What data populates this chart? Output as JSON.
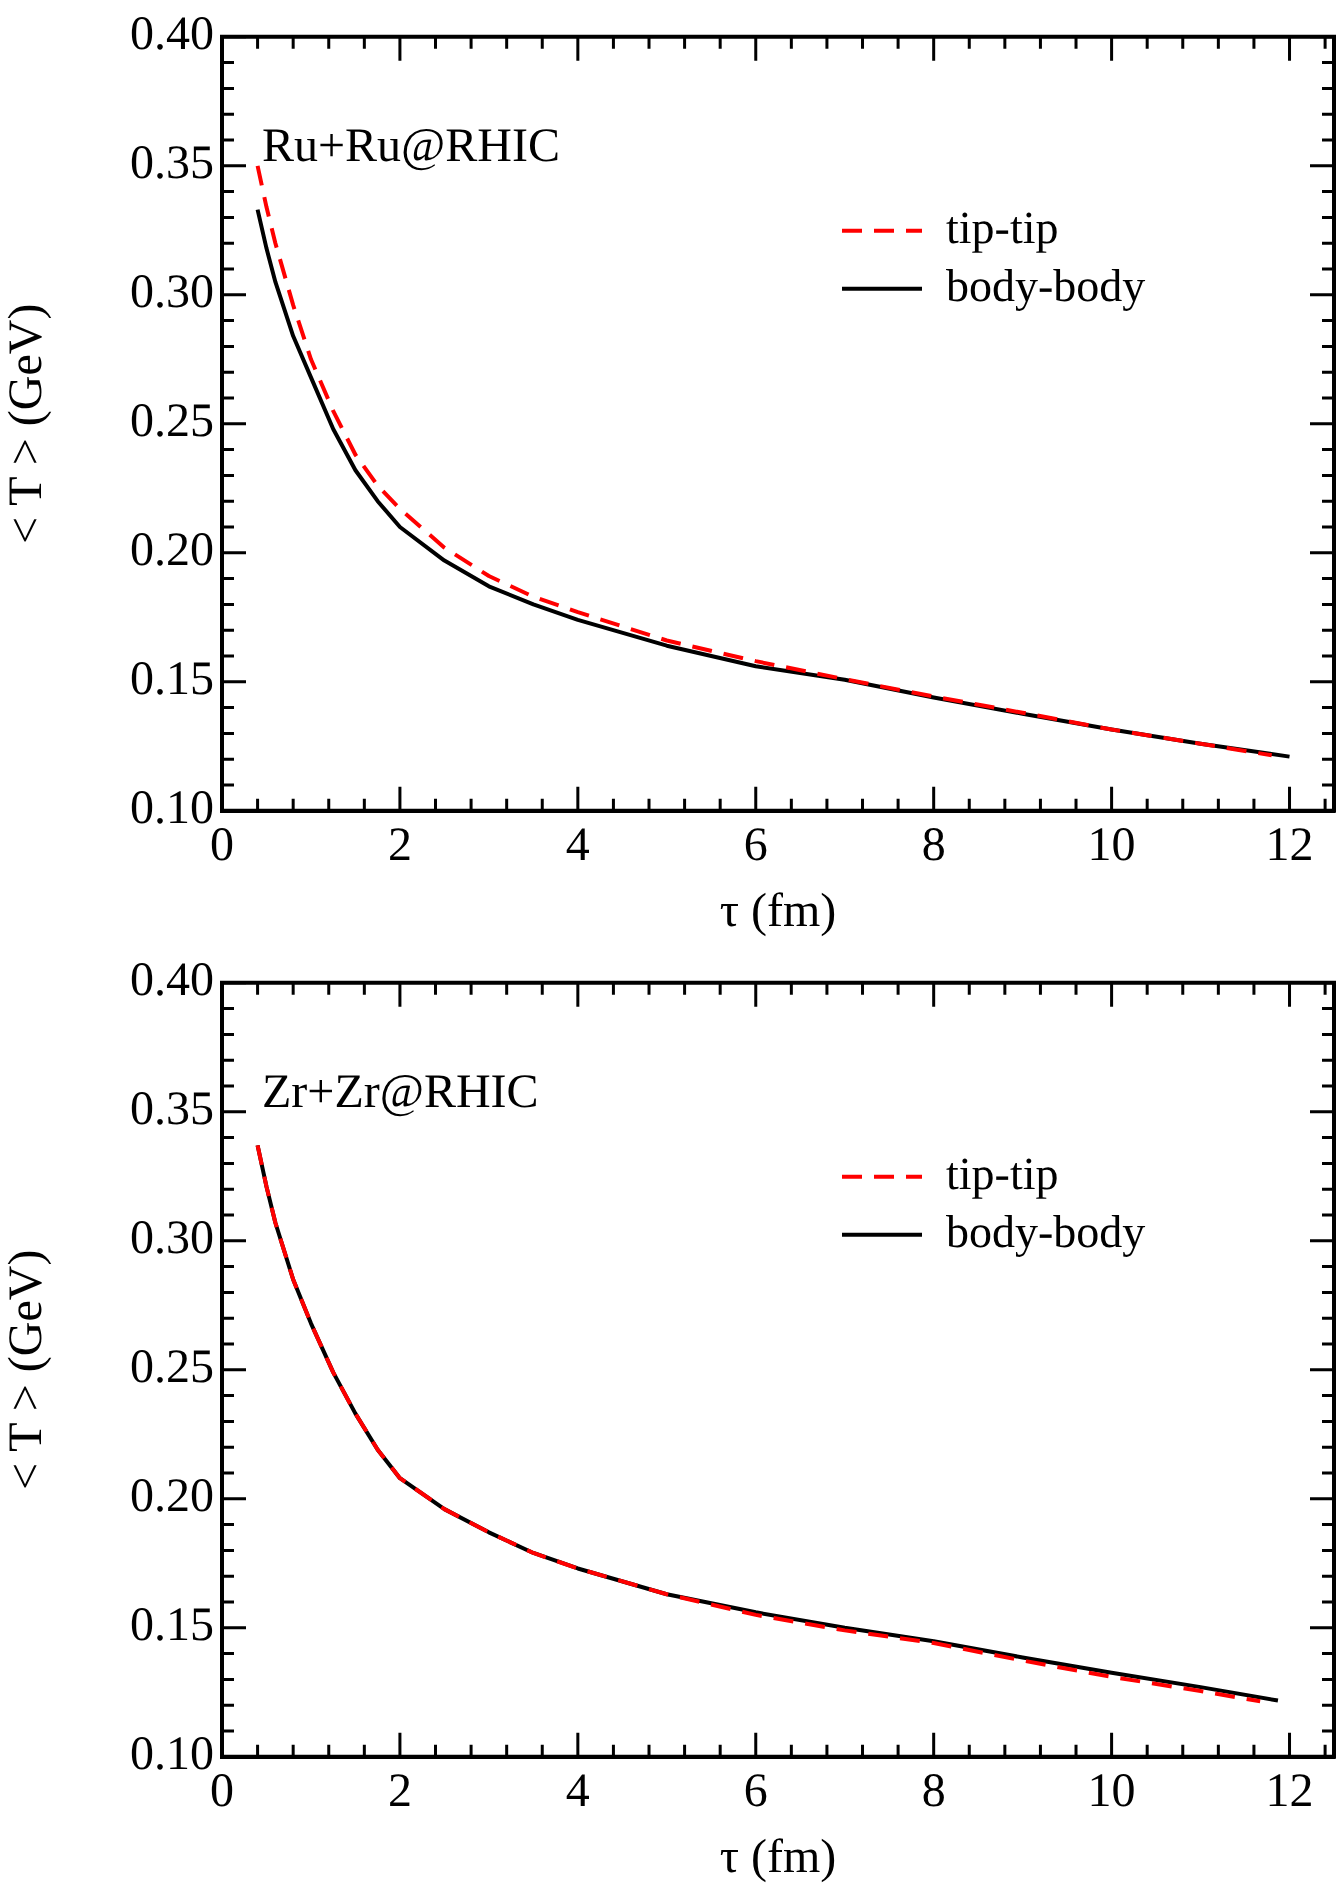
{
  "chart_data": [
    {
      "type": "line",
      "xlabel": "τ (fm)",
      "ylabel": "< T > (GeV)",
      "annotations": [
        "Ru+Ru@RHIC"
      ],
      "legend": "top right",
      "marker": "none",
      "grid": false,
      "xlim": [
        0,
        12.5
      ],
      "ylim": [
        0.1,
        0.4
      ],
      "xticks": [
        0,
        {
          "value": 0.4,
          "label": null
        },
        {
          "value": 0.8,
          "label": null
        },
        {
          "value": 1.2,
          "label": null
        },
        {
          "value": 1.6,
          "label": null
        },
        2,
        {
          "value": 2.4,
          "label": null
        },
        {
          "value": 2.8,
          "label": null
        },
        {
          "value": 3.2,
          "label": null
        },
        {
          "value": 3.6,
          "label": null
        },
        4,
        {
          "value": 4.4,
          "label": null
        },
        {
          "value": 4.8,
          "label": null
        },
        {
          "value": 5.2,
          "label": null
        },
        {
          "value": 5.6,
          "label": null
        },
        6,
        {
          "value": 6.4,
          "label": null
        },
        {
          "value": 6.8,
          "label": null
        },
        {
          "value": 7.2,
          "label": null
        },
        {
          "value": 7.6,
          "label": null
        },
        8,
        {
          "value": 8.4,
          "label": null
        },
        {
          "value": 8.8,
          "label": null
        },
        {
          "value": 9.2,
          "label": null
        },
        {
          "value": 9.6,
          "label": null
        },
        10,
        {
          "value": 10.4,
          "label": null
        },
        {
          "value": 10.8,
          "label": null
        },
        {
          "value": 11.2,
          "label": null
        },
        {
          "value": 11.6,
          "label": null
        },
        12,
        {
          "value": 12.4,
          "label": null
        }
      ],
      "yticks": [
        {
          "value": 0.1,
          "label": "0.10"
        },
        {
          "value": 0.11,
          "label": null
        },
        {
          "value": 0.12,
          "label": null
        },
        {
          "value": 0.13,
          "label": null
        },
        {
          "value": 0.14,
          "label": null
        },
        {
          "value": 0.15,
          "label": "0.15"
        },
        {
          "value": 0.16,
          "label": null
        },
        {
          "value": 0.17,
          "label": null
        },
        {
          "value": 0.18,
          "label": null
        },
        {
          "value": 0.19,
          "label": null
        },
        {
          "value": 0.2,
          "label": "0.20"
        },
        {
          "value": 0.21,
          "label": null
        },
        {
          "value": 0.22,
          "label": null
        },
        {
          "value": 0.23,
          "label": null
        },
        {
          "value": 0.24,
          "label": null
        },
        {
          "value": 0.25,
          "label": "0.25"
        },
        {
          "value": 0.26,
          "label": null
        },
        {
          "value": 0.27,
          "label": null
        },
        {
          "value": 0.28,
          "label": null
        },
        {
          "value": 0.29,
          "label": null
        },
        {
          "value": 0.3,
          "label": "0.30"
        },
        {
          "value": 0.31,
          "label": null
        },
        {
          "value": 0.32,
          "label": null
        },
        {
          "value": 0.33,
          "label": null
        },
        {
          "value": 0.34,
          "label": null
        },
        {
          "value": 0.35,
          "label": "0.35"
        },
        {
          "value": 0.36,
          "label": null
        },
        {
          "value": 0.37,
          "label": null
        },
        {
          "value": 0.38,
          "label": null
        },
        {
          "value": 0.39,
          "label": null
        },
        {
          "value": 0.4,
          "label": "0.40"
        }
      ],
      "series": [
        {
          "name": "tip-tip",
          "color": "#ff0000",
          "line_style": "dashed",
          "x": [
            0.4,
            0.5,
            0.6,
            0.8,
            1,
            1.25,
            1.5,
            1.75,
            2,
            2.5,
            3,
            3.5,
            4,
            5,
            6,
            7,
            8,
            9,
            10,
            11,
            11.8
          ],
          "values": [
            0.35,
            0.334,
            0.32,
            0.296,
            0.275,
            0.255,
            0.238,
            0.226,
            0.217,
            0.202,
            0.191,
            0.183,
            0.177,
            0.166,
            0.158,
            0.151,
            0.1443,
            0.138,
            0.1315,
            0.126,
            0.1215
          ]
        },
        {
          "name": "body-body",
          "color": "#000000",
          "line_style": "solid",
          "x": [
            0.4,
            0.5,
            0.6,
            0.8,
            1,
            1.25,
            1.5,
            1.75,
            2,
            2.5,
            3,
            3.5,
            4,
            5,
            6,
            7,
            8,
            9,
            10,
            11,
            12
          ],
          "values": [
            0.333,
            0.318,
            0.305,
            0.284,
            0.268,
            0.248,
            0.232,
            0.22,
            0.21,
            0.197,
            0.187,
            0.18,
            0.174,
            0.164,
            0.156,
            0.1508,
            0.1439,
            0.1376,
            0.1315,
            0.126,
            0.121
          ]
        }
      ]
    },
    {
      "type": "line",
      "xlabel": "τ (fm)",
      "ylabel": "< T > (GeV)",
      "annotations": [
        "Zr+Zr@RHIC"
      ],
      "legend": "top right",
      "marker": "none",
      "grid": false,
      "xlim": [
        0,
        12.5
      ],
      "ylim": [
        0.1,
        0.4
      ],
      "xticks": [
        0,
        {
          "value": 0.4,
          "label": null
        },
        {
          "value": 0.8,
          "label": null
        },
        {
          "value": 1.2,
          "label": null
        },
        {
          "value": 1.6,
          "label": null
        },
        2,
        {
          "value": 2.4,
          "label": null
        },
        {
          "value": 2.8,
          "label": null
        },
        {
          "value": 3.2,
          "label": null
        },
        {
          "value": 3.6,
          "label": null
        },
        4,
        {
          "value": 4.4,
          "label": null
        },
        {
          "value": 4.8,
          "label": null
        },
        {
          "value": 5.2,
          "label": null
        },
        {
          "value": 5.6,
          "label": null
        },
        6,
        {
          "value": 6.4,
          "label": null
        },
        {
          "value": 6.8,
          "label": null
        },
        {
          "value": 7.2,
          "label": null
        },
        {
          "value": 7.6,
          "label": null
        },
        8,
        {
          "value": 8.4,
          "label": null
        },
        {
          "value": 8.8,
          "label": null
        },
        {
          "value": 9.2,
          "label": null
        },
        {
          "value": 9.6,
          "label": null
        },
        10,
        {
          "value": 10.4,
          "label": null
        },
        {
          "value": 10.8,
          "label": null
        },
        {
          "value": 11.2,
          "label": null
        },
        {
          "value": 11.6,
          "label": null
        },
        12,
        {
          "value": 12.4,
          "label": null
        }
      ],
      "yticks": [
        {
          "value": 0.1,
          "label": "0.10"
        },
        {
          "value": 0.11,
          "label": null
        },
        {
          "value": 0.12,
          "label": null
        },
        {
          "value": 0.13,
          "label": null
        },
        {
          "value": 0.14,
          "label": null
        },
        {
          "value": 0.15,
          "label": "0.15"
        },
        {
          "value": 0.16,
          "label": null
        },
        {
          "value": 0.17,
          "label": null
        },
        {
          "value": 0.18,
          "label": null
        },
        {
          "value": 0.19,
          "label": null
        },
        {
          "value": 0.2,
          "label": "0.20"
        },
        {
          "value": 0.21,
          "label": null
        },
        {
          "value": 0.22,
          "label": null
        },
        {
          "value": 0.23,
          "label": null
        },
        {
          "value": 0.24,
          "label": null
        },
        {
          "value": 0.25,
          "label": "0.25"
        },
        {
          "value": 0.26,
          "label": null
        },
        {
          "value": 0.27,
          "label": null
        },
        {
          "value": 0.28,
          "label": null
        },
        {
          "value": 0.29,
          "label": null
        },
        {
          "value": 0.3,
          "label": "0.30"
        },
        {
          "value": 0.31,
          "label": null
        },
        {
          "value": 0.32,
          "label": null
        },
        {
          "value": 0.33,
          "label": null
        },
        {
          "value": 0.34,
          "label": null
        },
        {
          "value": 0.35,
          "label": "0.35"
        },
        {
          "value": 0.36,
          "label": null
        },
        {
          "value": 0.37,
          "label": null
        },
        {
          "value": 0.38,
          "label": null
        },
        {
          "value": 0.39,
          "label": null
        },
        {
          "value": 0.4,
          "label": "0.40"
        }
      ],
      "series": [
        {
          "name": "tip-tip",
          "color": "#ff0000",
          "line_style": "dashed",
          "x": [
            0.4,
            0.5,
            0.6,
            0.8,
            1,
            1.25,
            1.5,
            1.75,
            2,
            2.5,
            3,
            3.5,
            4,
            5,
            6,
            7,
            8,
            9,
            10,
            11,
            11.67
          ],
          "values": [
            0.337,
            0.321,
            0.307,
            0.285,
            0.268,
            0.249,
            0.233,
            0.219,
            0.208,
            0.196,
            0.187,
            0.179,
            0.173,
            0.163,
            0.155,
            0.149,
            0.1441,
            0.1373,
            0.131,
            0.1255,
            0.1215
          ]
        },
        {
          "name": "body-body",
          "color": "#000000",
          "line_style": "solid",
          "x": [
            0.4,
            0.5,
            0.6,
            0.8,
            1,
            1.25,
            1.5,
            1.75,
            2,
            2.5,
            3,
            3.5,
            4,
            5,
            6,
            7,
            8,
            9,
            10,
            11,
            11.87
          ],
          "values": [
            0.337,
            0.321,
            0.307,
            0.285,
            0.268,
            0.249,
            0.233,
            0.219,
            0.208,
            0.196,
            0.187,
            0.179,
            0.173,
            0.163,
            0.156,
            0.15,
            0.1448,
            0.1385,
            0.1326,
            0.127,
            0.1218
          ]
        }
      ]
    }
  ]
}
